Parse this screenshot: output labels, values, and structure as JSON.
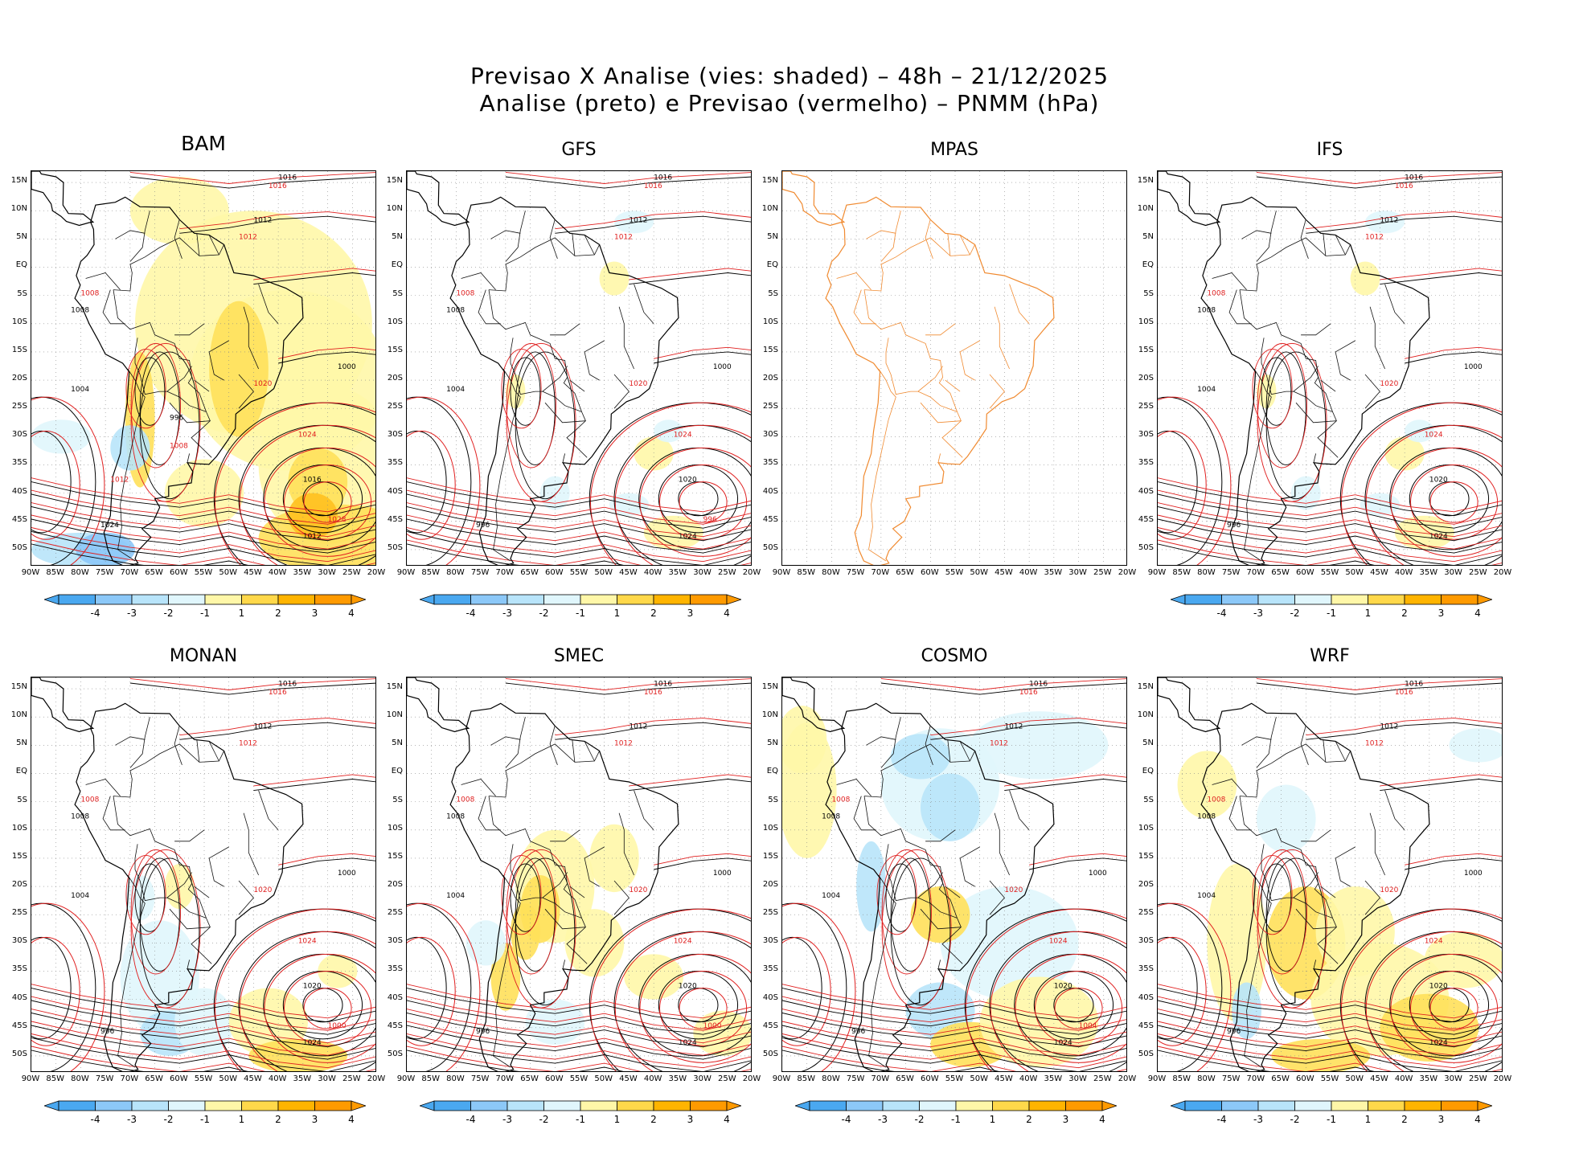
{
  "figure": {
    "title_line1": "Previsao X Analise (vies: shaded) – 48h – 21/12/2025",
    "title_line2": "Analise (preto) e Previsao (vermelho) – PNMM (hPa)"
  },
  "axes": {
    "lat_labels": [
      "15N",
      "10N",
      "5N",
      "EQ",
      "5S",
      "10S",
      "15S",
      "20S",
      "25S",
      "30S",
      "35S",
      "40S",
      "45S",
      "50S"
    ],
    "lon_labels": [
      "90W",
      "85W",
      "80W",
      "75W",
      "70W",
      "65W",
      "60W",
      "55W",
      "50W",
      "45W",
      "40W",
      "35W",
      "30W",
      "25W",
      "20W"
    ]
  },
  "colorbar": {
    "labels": [
      "-4",
      "-3",
      "-2",
      "-1",
      "1",
      "2",
      "3",
      "4"
    ],
    "colors": [
      "#4aa8f0",
      "#8cc8f8",
      "#b8e4fa",
      "#e0f6fc",
      "#ffffff",
      "#fff7a8",
      "#ffd84a",
      "#ffb400",
      "#ff9a00"
    ]
  },
  "panels": [
    {
      "name": "BAM",
      "bias": "mixed-positive",
      "labels_black": [
        "1016",
        "1012",
        "1008",
        "1004",
        "1000",
        "1016",
        "1012",
        "1024",
        "996"
      ],
      "labels_red": [
        "1016",
        "1012",
        "1008",
        "1020",
        "1024",
        "1028",
        "1012",
        "1008"
      ]
    },
    {
      "name": "GFS",
      "bias": "weak",
      "labels_black": [
        "1016",
        "1012",
        "1008",
        "1004",
        "1000",
        "1020",
        "1024",
        "996"
      ],
      "labels_red": [
        "1016",
        "1012",
        "1008",
        "1020",
        "1024",
        "996"
      ]
    },
    {
      "name": "MPAS",
      "bias": "none",
      "labels_black": [],
      "labels_red": []
    },
    {
      "name": "IFS",
      "bias": "weak",
      "labels_black": [
        "1016",
        "1012",
        "1008",
        "1004",
        "1000",
        "1020",
        "1024",
        "996"
      ],
      "labels_red": [
        "1016",
        "1012",
        "1008",
        "1020",
        "1024"
      ]
    },
    {
      "name": "MONAN",
      "bias": "mixed-negative",
      "labels_black": [
        "1016",
        "1012",
        "1008",
        "1004",
        "1000",
        "1020",
        "1024",
        "996"
      ],
      "labels_red": [
        "1016",
        "1012",
        "1008",
        "1020",
        "1024",
        "1000"
      ]
    },
    {
      "name": "SMEC",
      "bias": "positive",
      "labels_black": [
        "1016",
        "1012",
        "1008",
        "1004",
        "1000",
        "1020",
        "1024",
        "996"
      ],
      "labels_red": [
        "1016",
        "1012",
        "1008",
        "1020",
        "1024",
        "1000"
      ]
    },
    {
      "name": "COSMO",
      "bias": "negative",
      "labels_black": [
        "1016",
        "1012",
        "1008",
        "1004",
        "1000",
        "1020",
        "1024",
        "996"
      ],
      "labels_red": [
        "1016",
        "1012",
        "1008",
        "1020",
        "1024",
        "1004"
      ]
    },
    {
      "name": "WRF",
      "bias": "mixed",
      "labels_black": [
        "1016",
        "1012",
        "1008",
        "1004",
        "1000",
        "1020",
        "1024",
        "996"
      ],
      "labels_red": [
        "1016",
        "1012",
        "1008",
        "1020",
        "1024"
      ]
    }
  ]
}
